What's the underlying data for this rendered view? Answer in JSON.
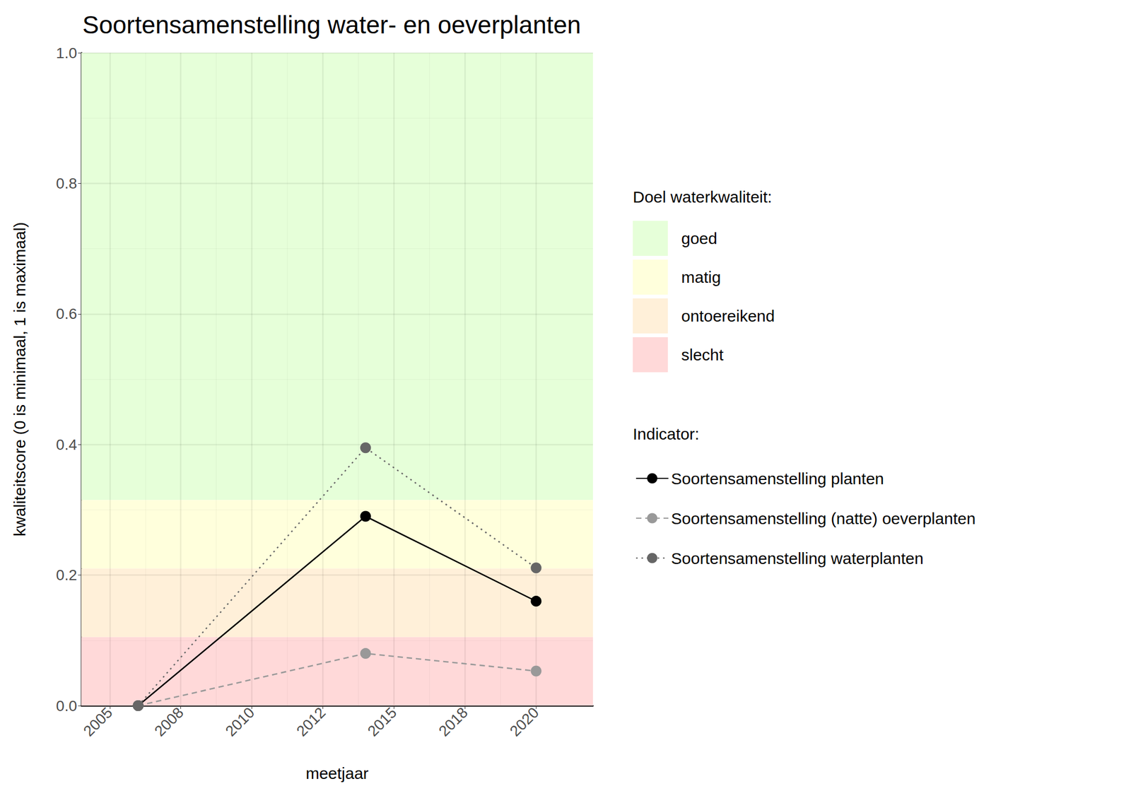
{
  "chart_data": {
    "type": "line",
    "title": "Soortensamenstelling water- en oeverplanten",
    "x_label": "meetjaar",
    "y_label": "kwaliteitscore (0 is minimaal, 1 is maximaal)",
    "x": [
      2006,
      2014,
      2020
    ],
    "series": [
      {
        "name": "Soortensamenstelling planten",
        "color": "#000000",
        "marker": "circle",
        "line_style": "solid",
        "values": [
          0,
          0.29,
          0.16
        ]
      },
      {
        "name": "Soortensamenstelling (natte) oeverplanten",
        "color": "#999999",
        "marker": "circle",
        "line_style": "dashed",
        "values": [
          0,
          0.08,
          0.053
        ]
      },
      {
        "name": "Soortensamenstelling waterplanten",
        "color": "#666666",
        "marker": "circle",
        "line_style": "dotted",
        "values": [
          0,
          0.395,
          0.211
        ]
      }
    ],
    "xlim": [
      2004,
      2022
    ],
    "xticks": [
      {
        "value": 2005,
        "label": "2005"
      },
      {
        "value": 2007.5,
        "label": "2008"
      },
      {
        "value": 2010,
        "label": "2010"
      },
      {
        "value": 2012.5,
        "label": "2012"
      },
      {
        "value": 2015,
        "label": "2015"
      },
      {
        "value": 2017.5,
        "label": "2018"
      },
      {
        "value": 2020,
        "label": "2020"
      }
    ],
    "ylim": [
      0,
      1
    ],
    "yticks": [
      {
        "value": 0,
        "label": "0.0"
      },
      {
        "value": 0.2,
        "label": "0.2"
      },
      {
        "value": 0.4,
        "label": "0.4"
      },
      {
        "value": 0.6,
        "label": "0.6"
      },
      {
        "value": 0.8,
        "label": "0.8"
      },
      {
        "value": 1,
        "label": "1.0"
      }
    ],
    "grid": true,
    "legend_title": "Indicator:",
    "bands_title": "Doel waterkwaliteit:",
    "bands": [
      {
        "name": "goed",
        "from": 0.315,
        "to": 1,
        "color": "#e6ffd9"
      },
      {
        "name": "matig",
        "from": 0.21,
        "to": 0.315,
        "color": "#ffffdc"
      },
      {
        "name": "ontoereikend",
        "from": 0.105,
        "to": 0.21,
        "color": "#fff0d9"
      },
      {
        "name": "slecht",
        "from": 0,
        "to": 0.105,
        "color": "#ffd9d9"
      }
    ]
  }
}
